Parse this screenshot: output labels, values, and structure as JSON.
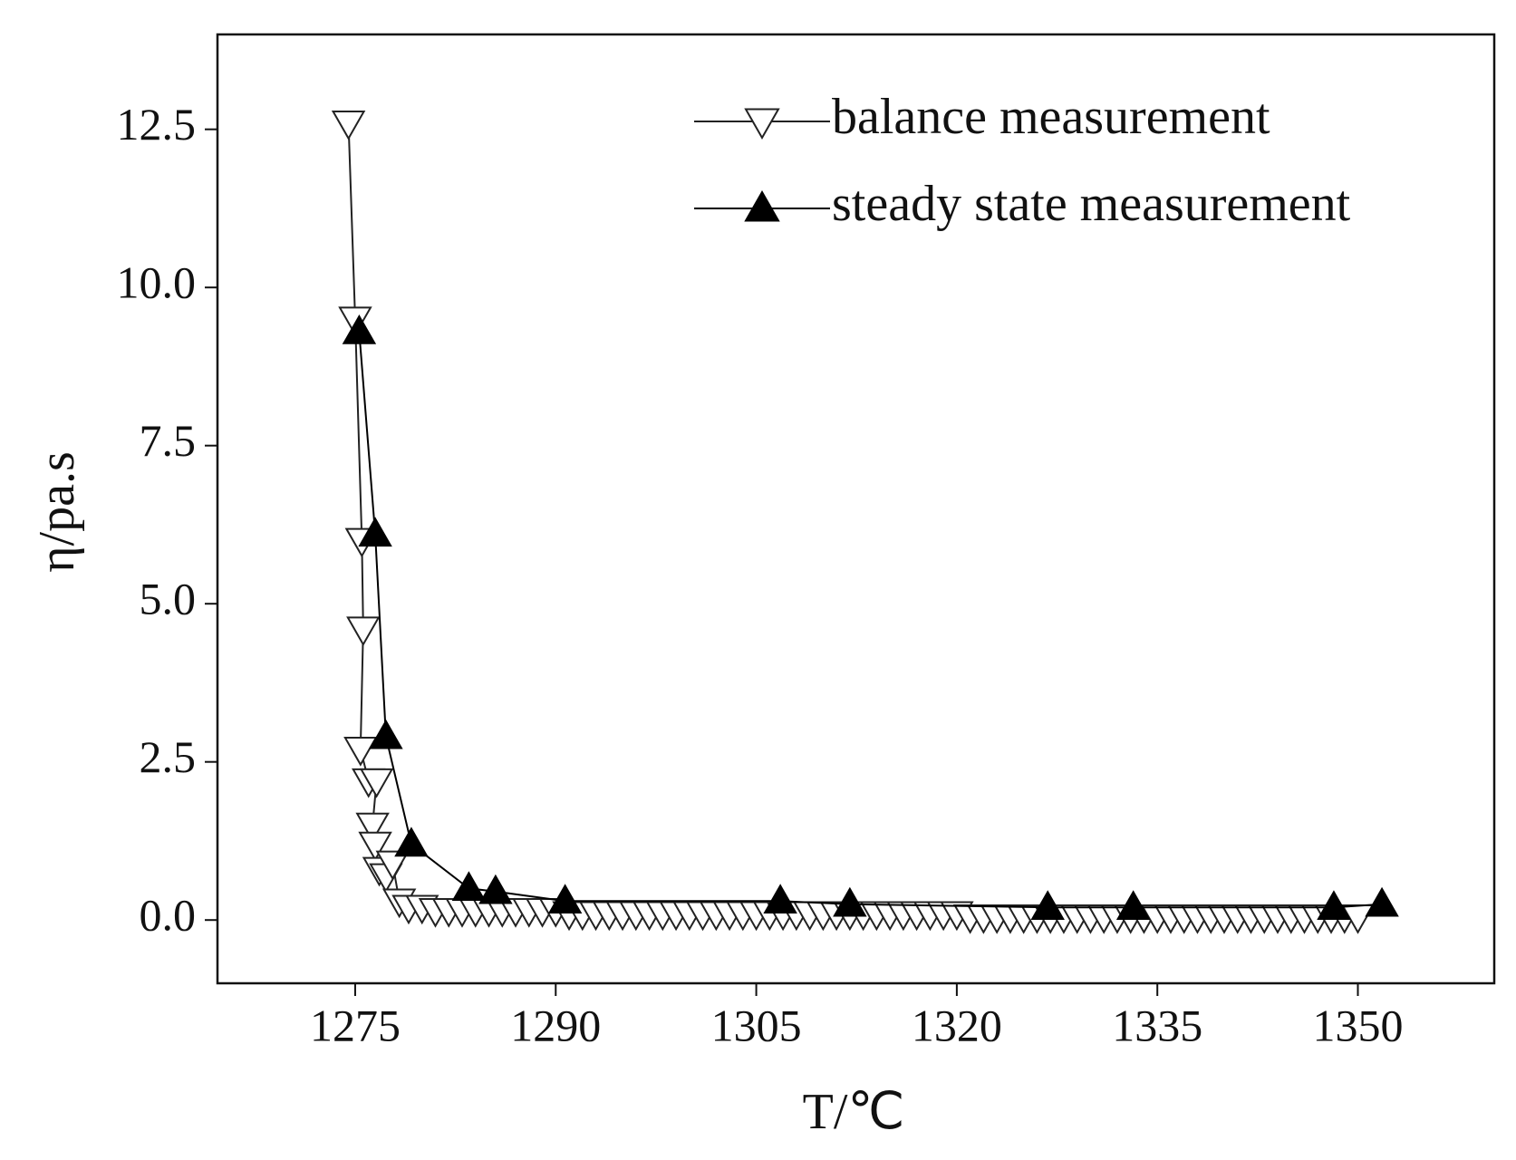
{
  "chart_data": {
    "type": "line",
    "x_label": "T/℃",
    "y_label": "η/pa.s",
    "xlim": [
      1264.7,
      1360.2
    ],
    "ylim": [
      -1,
      14
    ],
    "xticks": [
      1275,
      1290,
      1305,
      1320,
      1335,
      1350
    ],
    "yticks": [
      {
        "value": 0,
        "label": "0.0"
      },
      {
        "value": 2.5,
        "label": "2.5"
      },
      {
        "value": 5,
        "label": "5.0"
      },
      {
        "value": 7.5,
        "label": "7.5"
      },
      {
        "value": 10,
        "label": "10.0"
      },
      {
        "value": 12.5,
        "label": "12.5"
      }
    ],
    "legend": "upper right",
    "series": [
      {
        "name": "balance measurement",
        "color": "#222222",
        "marker": "down-open",
        "x": [
          1274.5,
          1275,
          1275.5,
          1275.6,
          1275.4,
          1276,
          1276.6,
          1276.3,
          1276.5,
          1276.8,
          1277.3,
          1277.8,
          1278.3,
          1279,
          1280,
          1281,
          1282,
          1283,
          1284,
          1285,
          1286,
          1287,
          1288,
          1289,
          1290,
          1291,
          1292,
          1293,
          1294,
          1295,
          1296,
          1297,
          1298,
          1299,
          1300,
          1301,
          1302,
          1303,
          1304,
          1305,
          1306,
          1307,
          1308,
          1309,
          1310,
          1311,
          1312,
          1313,
          1314,
          1315,
          1316,
          1317,
          1318,
          1319,
          1320,
          1321,
          1322,
          1323,
          1324,
          1325,
          1326,
          1327,
          1328,
          1329,
          1330,
          1331,
          1332,
          1333,
          1334,
          1335,
          1336,
          1337,
          1338,
          1339,
          1340,
          1341,
          1342,
          1343,
          1344,
          1345,
          1346,
          1347,
          1348,
          1349,
          1350
        ],
        "values": [
          12.6,
          9.5,
          6.0,
          4.6,
          2.7,
          2.2,
          2.2,
          1.5,
          1.2,
          0.8,
          0.7,
          0.9,
          0.3,
          0.2,
          0.2,
          0.15,
          0.15,
          0.15,
          0.15,
          0.15,
          0.15,
          0.15,
          0.15,
          0.15,
          0.15,
          0.1,
          0.1,
          0.1,
          0.1,
          0.1,
          0.1,
          0.1,
          0.1,
          0.1,
          0.1,
          0.1,
          0.1,
          0.1,
          0.1,
          0.1,
          0.1,
          0.1,
          0.1,
          0.1,
          0.1,
          0.1,
          0.1,
          0.1,
          0.1,
          0.1,
          0.1,
          0.1,
          0.1,
          0.1,
          0.1,
          0.05,
          0.05,
          0.05,
          0.05,
          0.05,
          0.05,
          0.05,
          0.05,
          0.05,
          0.05,
          0.05,
          0.05,
          0.05,
          0.05,
          0.05,
          0.05,
          0.05,
          0.05,
          0.05,
          0.05,
          0.05,
          0.05,
          0.05,
          0.05,
          0.05,
          0.05,
          0.05,
          0.05,
          0.05,
          0.05
        ]
      },
      {
        "name": "steady state measurement",
        "color": "#000000",
        "marker": "up-filled",
        "x": [
          1275.3,
          1276.5,
          1277.3,
          1279.2,
          1283.5,
          1285.5,
          1290.7,
          1306.8,
          1312,
          1326.8,
          1333.2,
          1348.2,
          1351.8
        ],
        "values": [
          9.3,
          6.1,
          2.9,
          1.2,
          0.5,
          0.45,
          0.3,
          0.3,
          0.25,
          0.2,
          0.2,
          0.2,
          0.25
        ]
      }
    ]
  }
}
